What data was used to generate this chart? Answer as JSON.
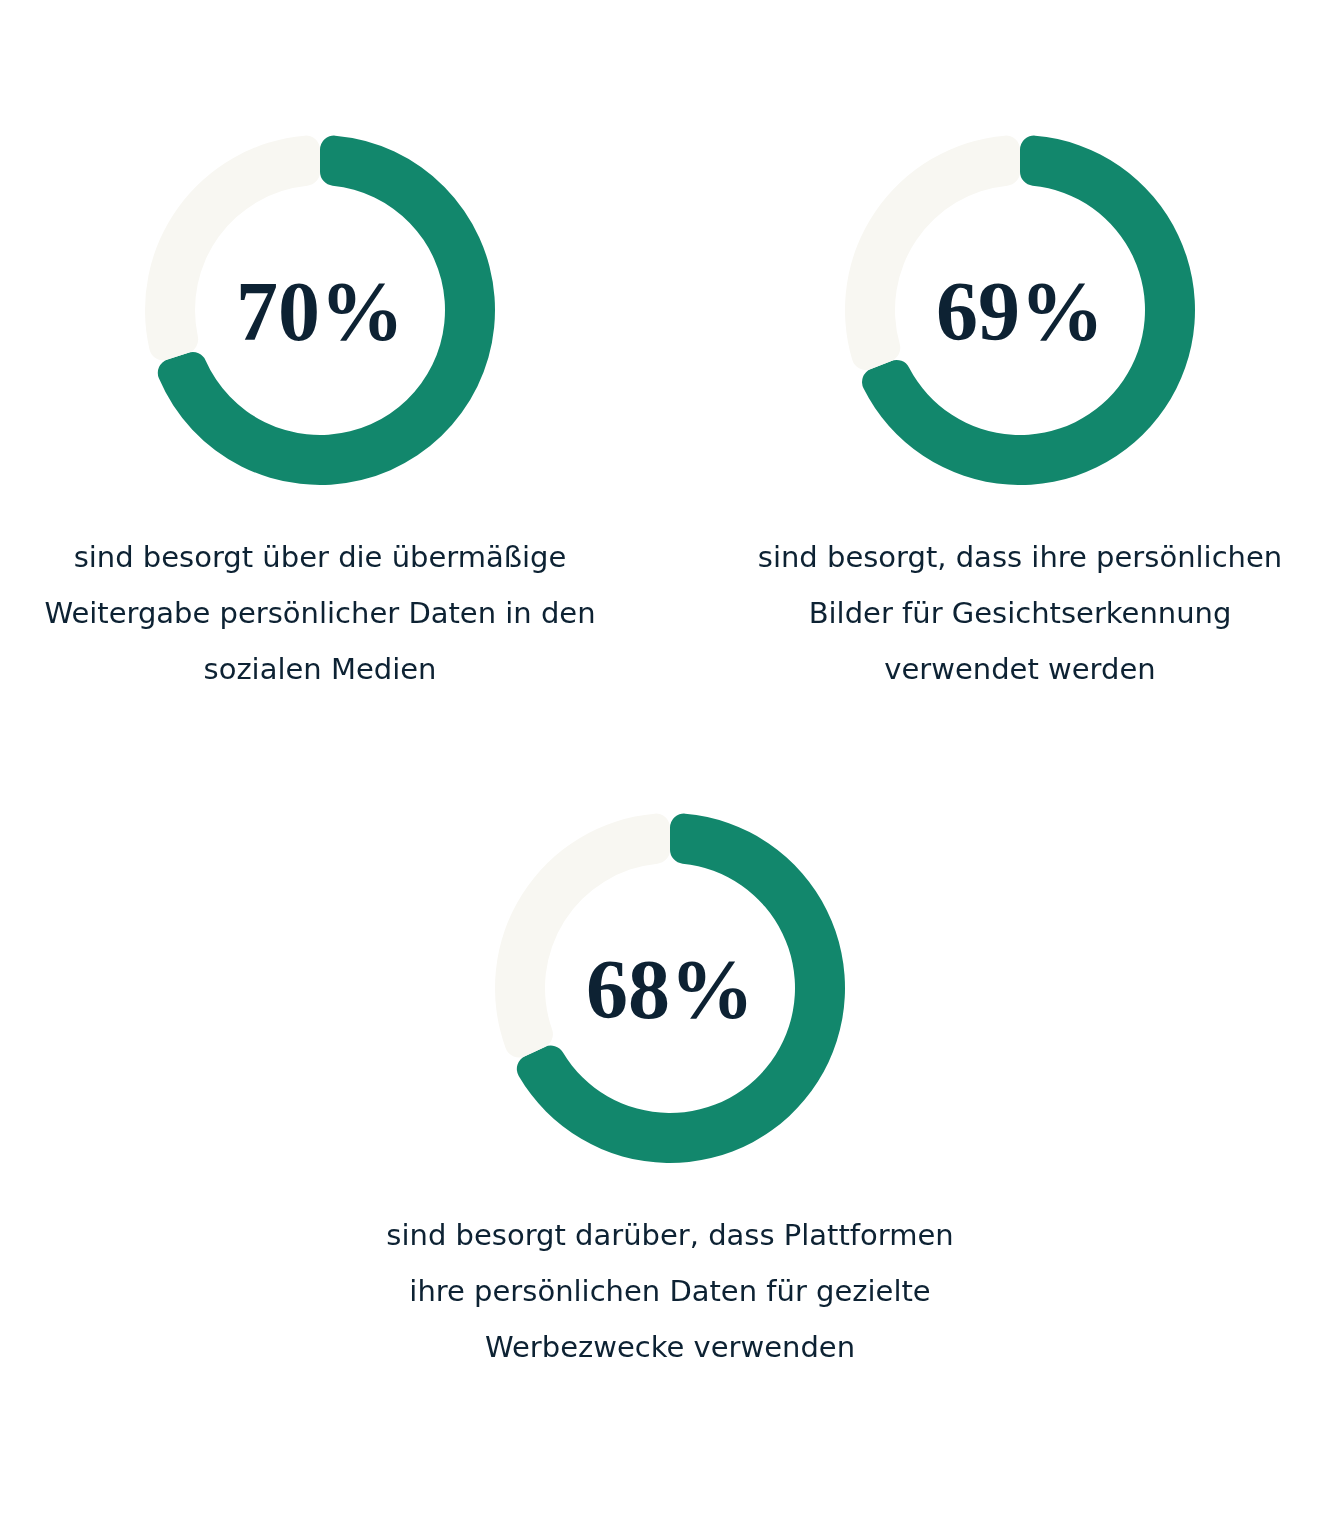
{
  "chart_data": [
    {
      "type": "donut",
      "categories": [
        null,
        null
      ],
      "values": [
        70,
        30
      ],
      "colors": [
        "#12876c",
        "#f8f7f2"
      ],
      "value_labels": [
        "70%",
        null
      ],
      "annotations": [
        "sind besorgt über die übermäßige",
        "Weitergabe persönlicher Daten in den",
        "sozialen Medien"
      ]
    },
    {
      "type": "donut",
      "categories": [
        null,
        null
      ],
      "values": [
        69,
        31
      ],
      "colors": [
        "#12876c",
        "#f8f7f2"
      ],
      "value_labels": [
        "69%",
        null
      ],
      "annotations": [
        "sind besorgt, dass ihre persönlichen",
        "Bilder für Gesichtserkennung",
        "verwendet werden"
      ]
    },
    {
      "type": "donut",
      "categories": [
        null,
        null
      ],
      "values": [
        68,
        32
      ],
      "colors": [
        "#12876c",
        "#f8f7f2"
      ],
      "value_labels": [
        "68%",
        null
      ],
      "annotations": [
        "sind besorgt darüber, dass Plattformen",
        "ihre persönlichen Daten für gezielte",
        "Werbezwecke verwenden"
      ]
    }
  ]
}
